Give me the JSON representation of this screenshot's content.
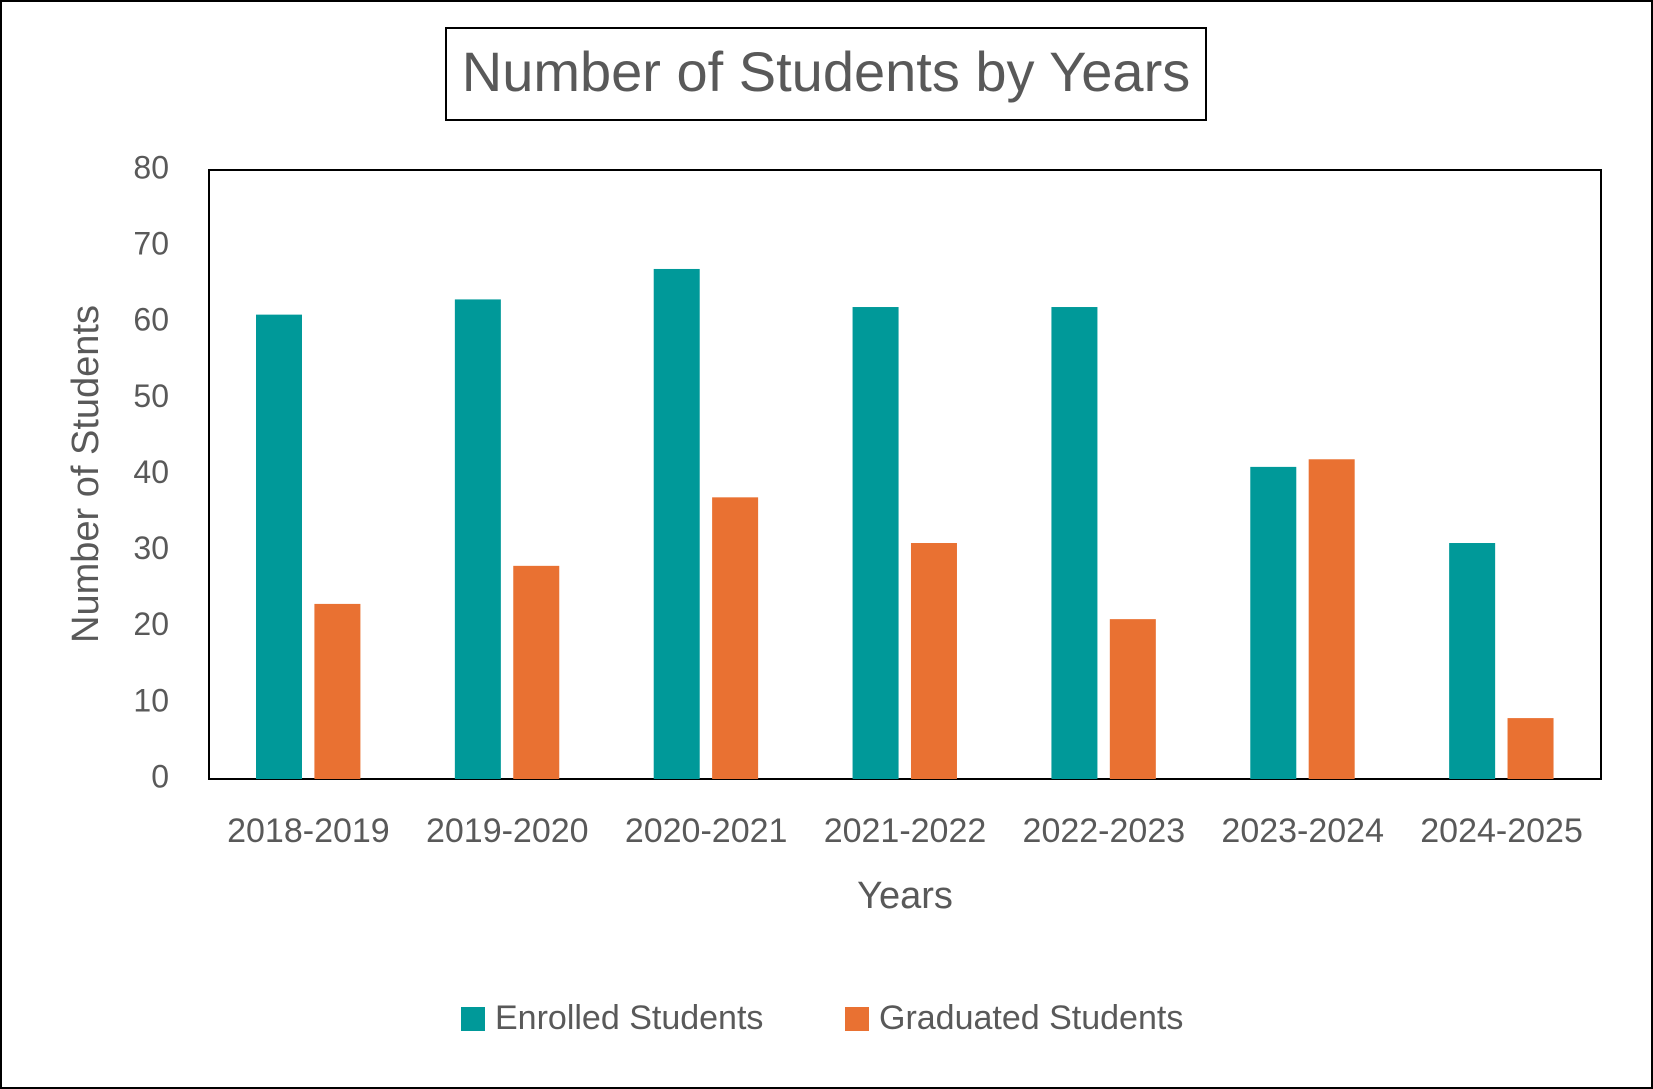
{
  "chart_data": {
    "type": "bar",
    "title": "Number of Students by Years",
    "x_label": "Years",
    "y_label": "Number of Students",
    "categories": [
      "2018-2019",
      "2019-2020",
      "2020-2021",
      "2021-2022",
      "2022-2023",
      "2023-2024",
      "2024-2025"
    ],
    "series": [
      {
        "name": "Enrolled Students",
        "color": "#009999",
        "values": [
          61,
          63,
          67,
          62,
          62,
          41,
          31
        ]
      },
      {
        "name": "Graduated Students",
        "color": "#e97132",
        "values": [
          23,
          28,
          37,
          31,
          21,
          42,
          8
        ]
      }
    ],
    "ylim": [
      0,
      80
    ],
    "yticks": [
      0,
      10,
      20,
      30,
      40,
      50,
      60,
      70,
      80
    ],
    "grid": false,
    "legend": "bottom"
  }
}
